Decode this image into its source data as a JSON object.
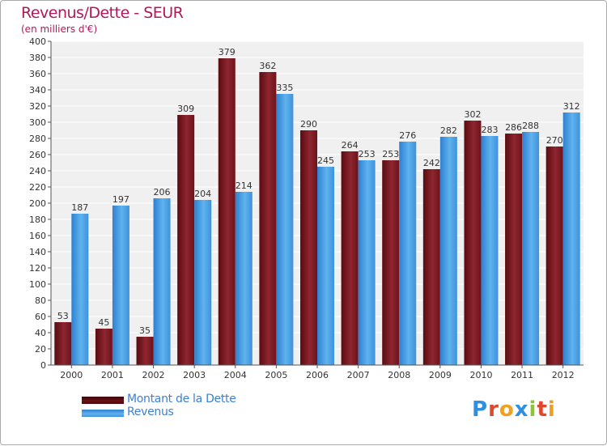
{
  "header": {
    "title": "Revenus/Dette - SEUR",
    "subtitle": "(en milliers d'€)"
  },
  "legend": {
    "items": [
      {
        "label": "Montant de la Dette",
        "color": "#6b0f14"
      },
      {
        "label": "Revenus",
        "color": "#4a9fe6"
      }
    ]
  },
  "logo": {
    "text": "Proxiti",
    "letter_colors": [
      "#2f8fe0",
      "#e0472f",
      "#f0a020",
      "#2f8fe0",
      "#8fc43a",
      "#e0472f",
      "#f0a020"
    ]
  },
  "chart_data": {
    "type": "bar",
    "title": "Revenus/Dette - SEUR",
    "subtitle": "(en milliers d'€)",
    "xlabel": "",
    "ylabel": "",
    "categories": [
      "2000",
      "2001",
      "2002",
      "2003",
      "2004",
      "2005",
      "2006",
      "2007",
      "2008",
      "2009",
      "2010",
      "2011",
      "2012"
    ],
    "series": [
      {
        "name": "Montant de la Dette",
        "color": "#8a1f28",
        "values": [
          53,
          45,
          35,
          309,
          379,
          362,
          290,
          264,
          253,
          242,
          302,
          286,
          270
        ]
      },
      {
        "name": "Revenus",
        "color": "#4aa3e8",
        "values": [
          187,
          197,
          206,
          204,
          214,
          335,
          245,
          253,
          276,
          282,
          283,
          288,
          312
        ]
      }
    ],
    "ylim": [
      0,
      400
    ],
    "y_ticks": [
      0,
      20,
      40,
      60,
      80,
      100,
      120,
      140,
      160,
      180,
      200,
      220,
      240,
      260,
      280,
      300,
      320,
      340,
      360,
      380,
      400
    ],
    "grid": true,
    "legend_position": "bottom-left"
  }
}
